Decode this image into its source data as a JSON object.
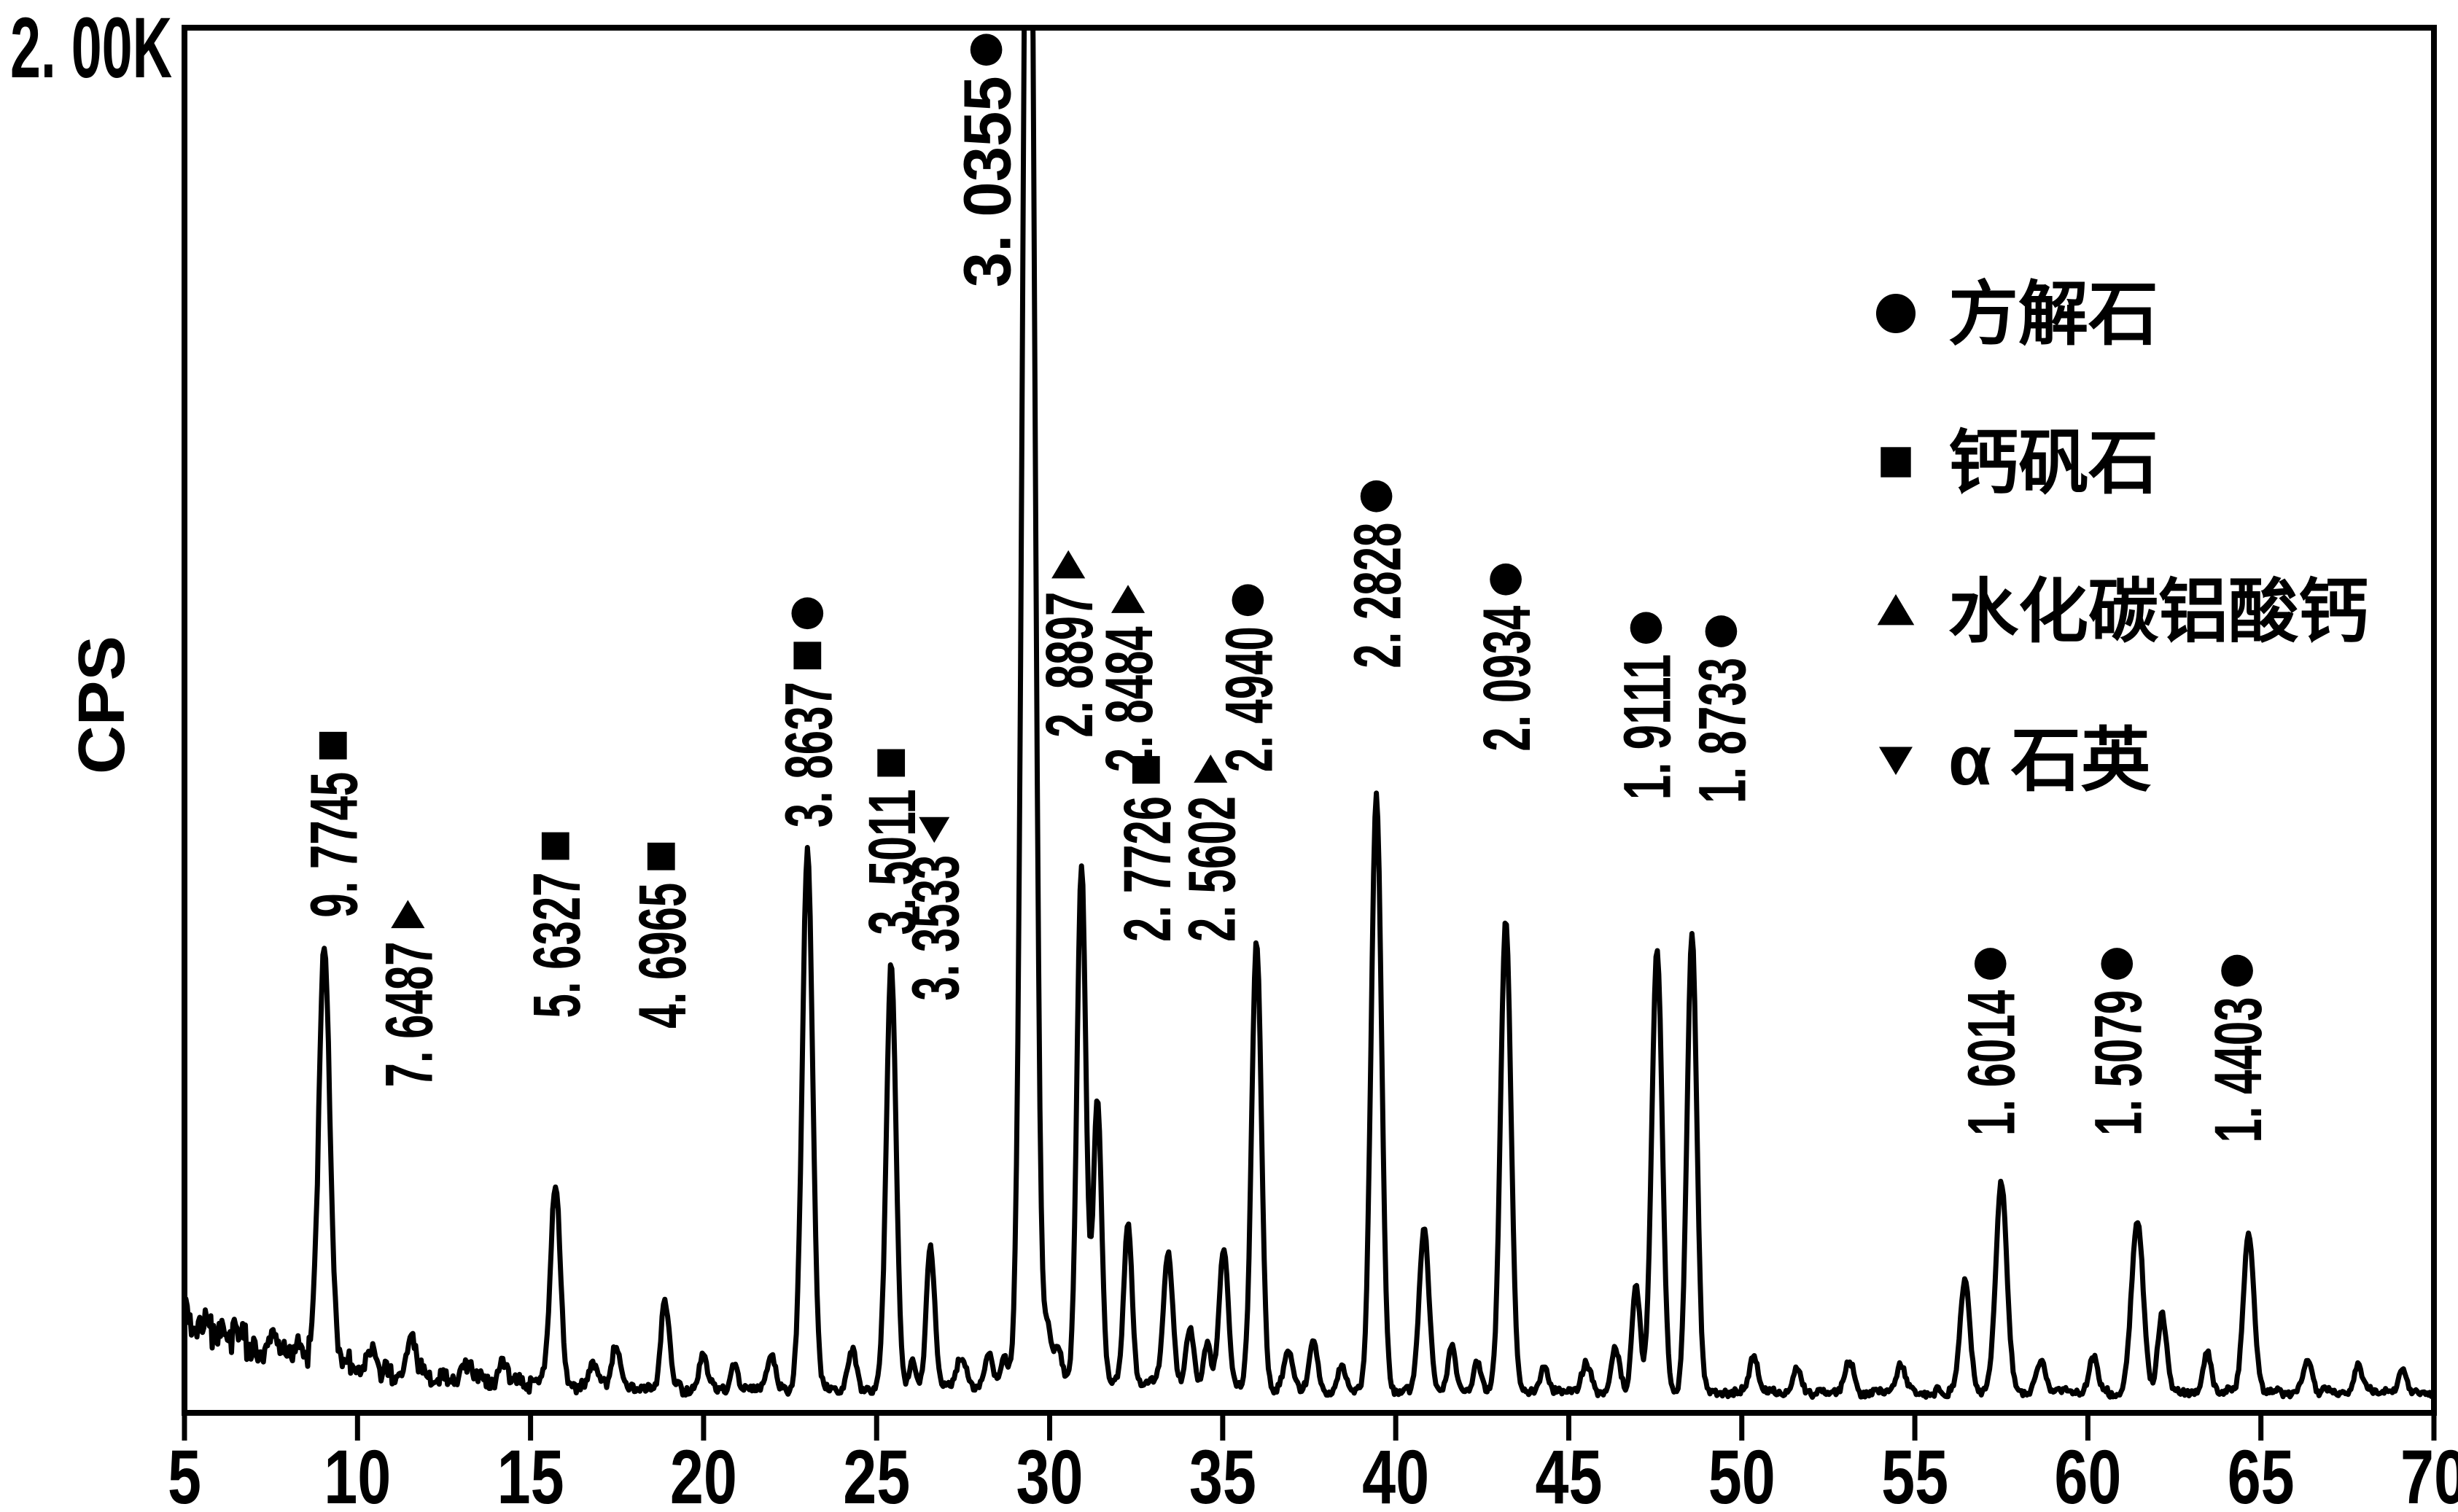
{
  "ink": "#000000",
  "background": "#ffffff",
  "y_axis": {
    "max_label": "2. 00K",
    "unit_label": "CPS",
    "min": 0,
    "max": 2000
  },
  "x_axis": {
    "min": 5,
    "max": 70,
    "tick_values": [
      5,
      10,
      15,
      20,
      25,
      30,
      35,
      40,
      45,
      50,
      55,
      60,
      65,
      70
    ],
    "tick_labels": [
      "5",
      "10",
      "15",
      "20",
      "25",
      "30",
      "35",
      "40",
      "45",
      "50",
      "55",
      "60",
      "65",
      "70"
    ]
  },
  "legend": {
    "items": [
      {
        "marker": "circle",
        "label": "方解石"
      },
      {
        "marker": "square",
        "label": "钙矾石"
      },
      {
        "marker": "triangle-up",
        "label": "水化碳铝酸钙"
      },
      {
        "marker": "triangle-down",
        "label": "α 石英"
      }
    ]
  },
  "chart_data": {
    "type": "line",
    "title": "",
    "xlabel": "",
    "ylabel": "CPS",
    "x_range": [
      5,
      70
    ],
    "y_range": [
      0,
      2000
    ],
    "y_full_scale_label": "2. 00K",
    "grid": false,
    "legend_position": "top-right",
    "phases": {
      "circle": "方解石",
      "square": "钙矾石",
      "triangle-up": "水化碳铝酸钙",
      "triangle-down": "α 石英"
    },
    "peaks": [
      {
        "d_label": "9. 7745",
        "d": 9.7745,
        "two_theta": 9.04,
        "apex_cps": 680,
        "clipped": false,
        "markers": [
          "square"
        ],
        "phase": "钙矾石",
        "label_base_cps": 715,
        "label_dx": 12,
        "label_len": 200,
        "trace_height": 600,
        "sigma": 0.16
      },
      {
        "d_label": "7. 6487",
        "d": 7.6487,
        "two_theta": 11.56,
        "apex_cps": 110,
        "clipped": false,
        "markers": [
          "triangle-up"
        ],
        "phase": "水化碳铝酸钙",
        "label_base_cps": 470,
        "label_dx": -5,
        "label_len": 200,
        "trace_height": 62,
        "sigma": 0.12
      },
      {
        "d_label": "5. 6327",
        "d": 5.6327,
        "two_theta": 15.72,
        "apex_cps": 325,
        "clipped": false,
        "markers": [
          "square"
        ],
        "phase": "钙矾石",
        "label_base_cps": 570,
        "label_dx": 0,
        "label_len": 200,
        "trace_height": 285,
        "sigma": 0.14
      },
      {
        "d_label": "4. 6965",
        "d": 4.6965,
        "two_theta": 18.88,
        "apex_cps": 160,
        "clipped": false,
        "markers": [
          "square"
        ],
        "phase": "钙矾石",
        "label_base_cps": 555,
        "label_dx": -5,
        "label_len": 200,
        "trace_height": 125,
        "sigma": 0.12
      },
      {
        "d_label": "3. 8637",
        "d": 3.8637,
        "two_theta": 23.0,
        "apex_cps": 810,
        "clipped": false,
        "markers": [
          "square",
          "circle"
        ],
        "phase": "钙矾石 方解石",
        "label_base_cps": 845,
        "label_dx": 0,
        "label_len": 200,
        "trace_height": 778,
        "sigma": 0.15
      },
      {
        "d_label": "3. 5011",
        "d": 3.5011,
        "two_theta": 25.42,
        "apex_cps": 650,
        "clipped": false,
        "markers": [
          "square"
        ],
        "phase": "钙矾石",
        "label_base_cps": 690,
        "label_dx": 0,
        "label_len": 200,
        "trace_height": 615,
        "sigma": 0.14
      },
      {
        "d_label": "3. 3533",
        "d": 3.3533,
        "two_theta": 26.56,
        "apex_cps": 240,
        "clipped": false,
        "markers": [
          "triangle-down"
        ],
        "phase": "α 石英",
        "label_base_cps": 595,
        "label_dx": 5,
        "label_len": 200,
        "trace_height": 205,
        "sigma": 0.12
      },
      {
        "d_label": "3. 0355",
        "d": 3.0355,
        "two_theta": 29.39,
        "apex_cps": 2000,
        "clipped": true,
        "markers": [
          "circle"
        ],
        "phase": "方解石",
        "label_base_cps": 1625,
        "label_dx": -58,
        "label_len": 290,
        "trace_height": 2600,
        "sigma": 0.17
      },
      {
        "d_label": "2. 8897",
        "d": 2.8897,
        "two_theta": 30.92,
        "apex_cps": 790,
        "clipped": false,
        "markers": [
          "triangle-up"
        ],
        "phase": "水化碳铝酸钙",
        "label_base_cps": 975,
        "label_dx": -18,
        "label_len": 200,
        "trace_height": 748,
        "sigma": 0.13
      },
      {
        "d_label": "2. 8484",
        "d": 2.8484,
        "two_theta": 31.38,
        "apex_cps": 450,
        "clipped": false,
        "markers": [
          "triangle-up"
        ],
        "phase": "水化碳铝酸钙",
        "label_base_cps": 925,
        "label_dx": 42,
        "label_len": 200,
        "trace_height": 405,
        "sigma": 0.12
      },
      {
        "d_label": "2. 7726",
        "d": 2.7726,
        "two_theta": 32.26,
        "apex_cps": 270,
        "clipped": false,
        "markers": [
          "square"
        ],
        "phase": "钙矾石",
        "label_base_cps": 680,
        "label_dx": 25,
        "label_len": 200,
        "trace_height": 226,
        "sigma": 0.12
      },
      {
        "d_label": "2. 5602",
        "d": 2.5602,
        "two_theta": 35.03,
        "apex_cps": 235,
        "clipped": false,
        "markers": [
          "triangle-up"
        ],
        "phase": "水化碳铝酸钙",
        "label_base_cps": 680,
        "label_dx": -18,
        "label_len": 200,
        "trace_height": 196,
        "sigma": 0.13
      },
      {
        "d_label": "2. 4940",
        "d": 2.494,
        "two_theta": 35.98,
        "apex_cps": 680,
        "clipped": false,
        "markers": [
          "circle"
        ],
        "phase": "方解石",
        "label_base_cps": 925,
        "label_dx": -12,
        "label_len": 200,
        "trace_height": 645,
        "sigma": 0.14
      },
      {
        "d_label": "2. 2828",
        "d": 2.2828,
        "two_theta": 39.44,
        "apex_cps": 890,
        "clipped": false,
        "markers": [
          "circle"
        ],
        "phase": "方解石",
        "label_base_cps": 1075,
        "label_dx": 0,
        "label_len": 200,
        "trace_height": 858,
        "sigma": 0.15
      },
      {
        "d_label": "2. 0934",
        "d": 2.0934,
        "two_theta": 43.18,
        "apex_cps": 710,
        "clipped": false,
        "markers": [
          "circle"
        ],
        "phase": "方解石",
        "label_base_cps": 955,
        "label_dx": 0,
        "label_len": 200,
        "trace_height": 680,
        "sigma": 0.15
      },
      {
        "d_label": "1. 9111",
        "d": 1.9111,
        "two_theta": 47.55,
        "apex_cps": 670,
        "clipped": false,
        "markers": [
          "circle"
        ],
        "phase": "方解石",
        "label_base_cps": 885,
        "label_dx": -15,
        "label_len": 200,
        "trace_height": 640,
        "sigma": 0.15
      },
      {
        "d_label": "1. 8733",
        "d": 1.8733,
        "two_theta": 48.56,
        "apex_cps": 690,
        "clipped": false,
        "markers": [
          "circle"
        ],
        "phase": "方解石",
        "label_base_cps": 880,
        "label_dx": 40,
        "label_len": 200,
        "trace_height": 660,
        "sigma": 0.14
      },
      {
        "d_label": "1. 6014",
        "d": 1.6014,
        "two_theta": 57.5,
        "apex_cps": 330,
        "clipped": false,
        "markers": [
          "circle"
        ],
        "phase": "方解石",
        "label_base_cps": 400,
        "label_dx": -15,
        "label_len": 200,
        "trace_height": 300,
        "sigma": 0.16
      },
      {
        "d_label": "1. 5079",
        "d": 1.5079,
        "two_theta": 61.43,
        "apex_cps": 275,
        "clipped": false,
        "markers": [
          "circle"
        ],
        "phase": "方解石",
        "label_base_cps": 400,
        "label_dx": -28,
        "label_len": 200,
        "trace_height": 246,
        "sigma": 0.17
      },
      {
        "d_label": "1. 4403",
        "d": 1.4403,
        "two_theta": 64.65,
        "apex_cps": 260,
        "clipped": false,
        "markers": [
          "circle"
        ],
        "phase": "方解石",
        "label_base_cps": 390,
        "label_dx": -16,
        "label_len": 200,
        "trace_height": 230,
        "sigma": 0.15
      }
    ],
    "minor_peaks": [
      [
        8.3,
        32,
        0.1
      ],
      [
        10.45,
        26,
        0.1
      ],
      [
        13.1,
        30,
        0.12
      ],
      [
        14.2,
        24,
        0.1
      ],
      [
        16.85,
        28,
        0.12
      ],
      [
        17.45,
        58,
        0.13
      ],
      [
        20.0,
        50,
        0.12
      ],
      [
        20.9,
        40,
        0.1
      ],
      [
        21.95,
        55,
        0.12
      ],
      [
        24.3,
        60,
        0.12
      ],
      [
        26.05,
        40,
        0.1
      ],
      [
        27.45,
        46,
        0.12
      ],
      [
        28.25,
        42,
        0.12
      ],
      [
        28.7,
        40,
        0.1
      ],
      [
        29.95,
        75,
        0.1
      ],
      [
        30.25,
        55,
        0.1
      ],
      [
        33.42,
        185,
        0.13
      ],
      [
        34.05,
        78,
        0.11
      ],
      [
        34.55,
        58,
        0.1
      ],
      [
        36.9,
        60,
        0.12
      ],
      [
        37.62,
        70,
        0.12
      ],
      [
        38.45,
        38,
        0.1
      ],
      [
        40.82,
        235,
        0.14
      ],
      [
        41.62,
        68,
        0.11
      ],
      [
        42.35,
        42,
        0.1
      ],
      [
        44.3,
        36,
        0.12
      ],
      [
        45.5,
        46,
        0.12
      ],
      [
        46.35,
        60,
        0.12
      ],
      [
        46.95,
        150,
        0.12
      ],
      [
        50.35,
        52,
        0.12
      ],
      [
        51.6,
        36,
        0.12
      ],
      [
        53.1,
        46,
        0.12
      ],
      [
        54.6,
        40,
        0.12
      ],
      [
        56.45,
        165,
        0.14
      ],
      [
        58.65,
        40,
        0.12
      ],
      [
        60.15,
        52,
        0.12
      ],
      [
        62.15,
        112,
        0.13
      ],
      [
        63.45,
        55,
        0.12
      ],
      [
        66.35,
        46,
        0.12
      ],
      [
        67.8,
        36,
        0.12
      ],
      [
        69.1,
        30,
        0.12
      ]
    ],
    "baseline": {
      "floor": 30,
      "decay_amp": 115,
      "decay_tau": 4.5,
      "hump_center": 31.5,
      "hump_amp": 14,
      "hump_sigma": 5
    },
    "noise": {
      "amp0": 40,
      "tau": 7,
      "floor": 11
    },
    "clip_max_cps": 2150,
    "step": 0.04
  }
}
